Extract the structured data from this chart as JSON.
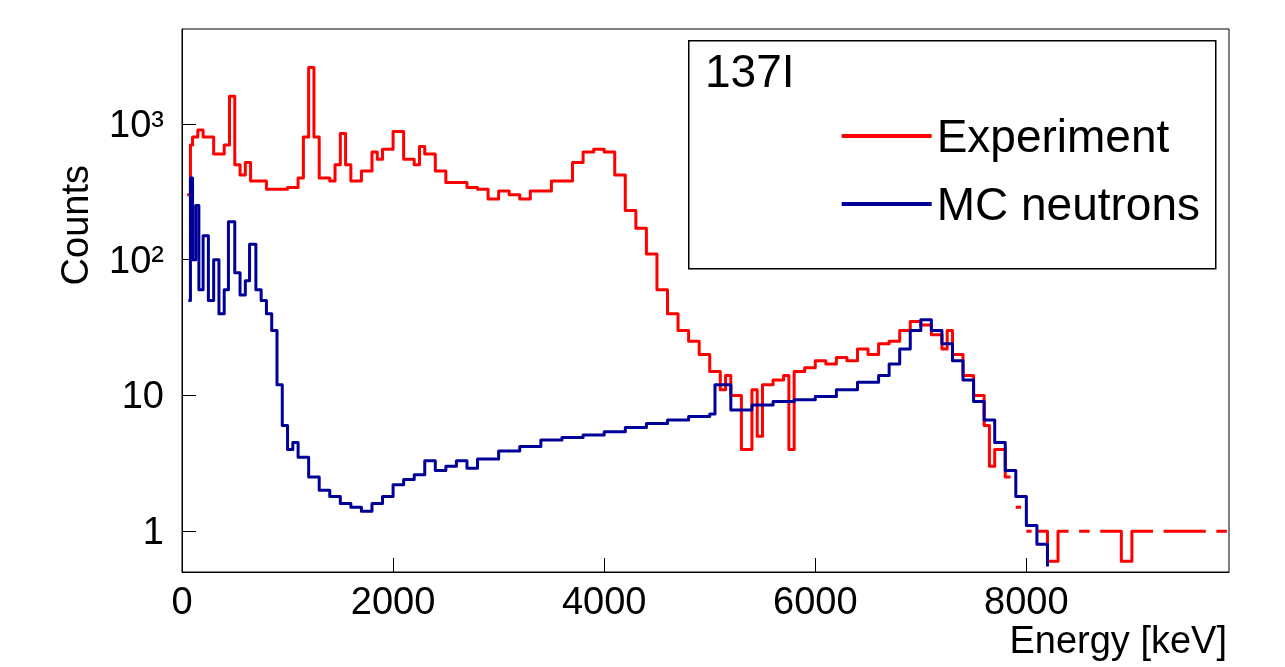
{
  "chart_data": {
    "type": "step",
    "xlabel": "Energy [keV]",
    "ylabel": "Counts",
    "legend_title": "137I",
    "legend": "top right",
    "log": "y",
    "grid": false,
    "xlim": [
      0,
      9920
    ],
    "ylim": [
      0.5,
      5000
    ],
    "xticks": [
      0,
      2000,
      4000,
      6000,
      8000
    ],
    "yticks": [
      1,
      10,
      {
        "value": 100,
        "label": "10²"
      },
      {
        "value": 1000,
        "label": "10³"
      }
    ],
    "series": [
      {
        "name": "Experiment",
        "color": "#ff0000",
        "x": [
          50,
          80,
          100,
          150,
          200,
          300,
          400,
          450,
          500,
          550,
          600,
          650,
          800,
          1000,
          1100,
          1150,
          1200,
          1250,
          1300,
          1400,
          1450,
          1500,
          1550,
          1600,
          1700,
          1800,
          1850,
          1900,
          2000,
          2100,
          2200,
          2250,
          2300,
          2400,
          2500,
          2700,
          2800,
          2900,
          3000,
          3100,
          3200,
          3300,
          3500,
          3700,
          3800,
          3900,
          4000,
          4100,
          4200,
          4300,
          4400,
          4500,
          4600,
          4700,
          4800,
          4900,
          5000,
          5100,
          5150,
          5200,
          5300,
          5400,
          5450,
          5500,
          5600,
          5700,
          5750,
          5800,
          5900,
          6000,
          6100,
          6200,
          6300,
          6400,
          6500,
          6600,
          6700,
          6800,
          6900,
          7000,
          7100,
          7200,
          7250,
          7300,
          7400,
          7500,
          7600,
          7650,
          7700,
          7800,
          7850,
          7900,
          7950,
          8000,
          8050,
          8100,
          8200,
          8300,
          8400,
          8500,
          8600,
          8700,
          8800,
          8900,
          9000,
          9200,
          9300,
          9500,
          9700,
          9800,
          9900
        ],
        "values": [
          300,
          700,
          800,
          900,
          800,
          600,
          700,
          1600,
          500,
          420,
          520,
          380,
          330,
          340,
          400,
          800,
          2600,
          800,
          400,
          380,
          500,
          850,
          500,
          380,
          450,
          620,
          550,
          650,
          880,
          550,
          500,
          680,
          600,
          450,
          370,
          340,
          330,
          280,
          320,
          300,
          280,
          320,
          380,
          520,
          620,
          650,
          620,
          420,
          230,
          170,
          110,
          60,
          40,
          30,
          25,
          20,
          15,
          11,
          14,
          10,
          4,
          11,
          5,
          12,
          13,
          14,
          4,
          15,
          16,
          18,
          17,
          19,
          18,
          22,
          20,
          24,
          25,
          30,
          35,
          33,
          28,
          22,
          30,
          20,
          14,
          10,
          6,
          3,
          4,
          2.5,
          null,
          1.5,
          null,
          1,
          null,
          1,
          0.6,
          1,
          null,
          1,
          null,
          1,
          1,
          0.6,
          1,
          null,
          1,
          1,
          null,
          1,
          1
        ]
      },
      {
        "name": "MC neutrons",
        "color": "#000099",
        "x": [
          60,
          80,
          100,
          130,
          160,
          200,
          250,
          300,
          350,
          400,
          440,
          500,
          550,
          600,
          640,
          700,
          750,
          800,
          850,
          900,
          950,
          1000,
          1050,
          1100,
          1200,
          1300,
          1400,
          1500,
          1600,
          1700,
          1800,
          1900,
          2000,
          2100,
          2200,
          2300,
          2400,
          2500,
          2600,
          2700,
          2800,
          3000,
          3200,
          3400,
          3600,
          3800,
          4000,
          4200,
          4400,
          4600,
          4800,
          5000,
          5050,
          5200,
          5400,
          5600,
          5800,
          6000,
          6200,
          6400,
          6600,
          6700,
          6800,
          6900,
          7000,
          7100,
          7200,
          7300,
          7400,
          7500,
          7600,
          7700,
          7800,
          7900,
          8000,
          8100,
          8200
        ],
        "values": [
          50,
          400,
          100,
          250,
          60,
          150,
          50,
          100,
          40,
          60,
          190,
          80,
          55,
          70,
          130,
          60,
          50,
          40,
          30,
          12,
          6,
          4,
          4.5,
          3.5,
          2.5,
          2,
          1.8,
          1.6,
          1.5,
          1.4,
          1.6,
          1.8,
          2.2,
          2.4,
          2.6,
          3.3,
          2.8,
          3,
          3.3,
          2.9,
          3.4,
          3.9,
          4.2,
          4.7,
          4.9,
          5.1,
          5.4,
          5.8,
          6.2,
          6.6,
          7,
          7.3,
          12,
          7.8,
          8.5,
          9,
          9.3,
          9.8,
          11,
          12.5,
          14,
          17,
          22,
          30,
          36,
          30,
          24,
          18,
          13,
          9,
          6.6,
          4.5,
          2.8,
          1.8,
          1.1,
          0.8,
          0.55
        ]
      }
    ]
  }
}
